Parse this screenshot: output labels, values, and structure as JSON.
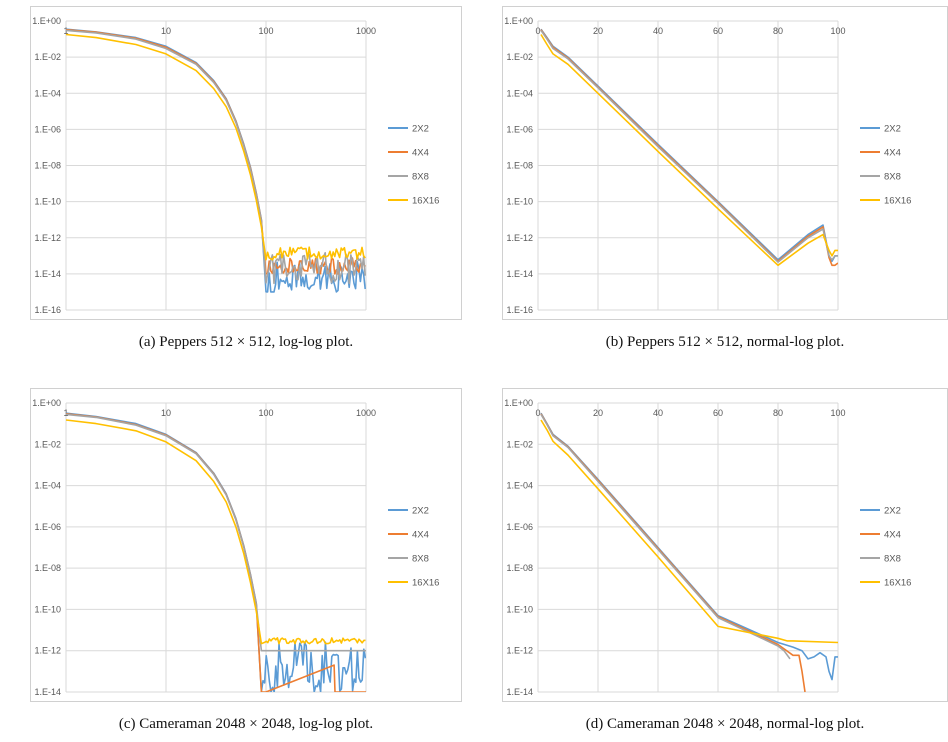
{
  "colors": {
    "2X2": "#5b9bd5",
    "4X4": "#ed7d31",
    "8X8": "#a5a5a5",
    "16X16": "#ffc000",
    "grid": "#d9d9d9"
  },
  "captions": {
    "a": "(a) Peppers 512 × 512, log-log plot.",
    "b": "(b) Peppers 512 × 512, normal-log plot.",
    "c": "(c) Cameraman 2048 × 2048, log-log plot.",
    "d": "(d) Cameraman 2048 × 2048, normal-log plot."
  },
  "legend": [
    "2X2",
    "4X4",
    "8X8",
    "16X16"
  ],
  "chart_data": [
    {
      "id": "a",
      "type": "line",
      "xscale": "log",
      "yscale": "log",
      "xlim": [
        1,
        1000
      ],
      "ylim": [
        1e-16,
        1
      ],
      "xticks": [
        "1",
        "10",
        "100",
        "1000"
      ],
      "yticks": [
        "1.E+00",
        "1.E-02",
        "1.E-04",
        "1.E-06",
        "1.E-08",
        "1.E-10",
        "1.E-12",
        "1.E-14",
        "1.E-16"
      ],
      "grid": true,
      "legend_position": "right",
      "series": [
        {
          "name": "2X2",
          "x": [
            1,
            2,
            5,
            10,
            20,
            30,
            40,
            50,
            60,
            70,
            80,
            90,
            100,
            200,
            400,
            1000
          ],
          "y": [
            0.35,
            0.25,
            0.12,
            0.04,
            0.005,
            0.0005,
            5e-05,
            3e-06,
            1.5e-07,
            8e-09,
            3e-10,
            1e-11,
            3e-13,
            2e-14,
            2e-14,
            2e-14
          ],
          "noise": {
            "x0": 100,
            "lo": 1e-15,
            "hi": 5e-14
          }
        },
        {
          "name": "4X4",
          "x": [
            1,
            2,
            5,
            10,
            20,
            30,
            40,
            50,
            60,
            70,
            80,
            90,
            100,
            200,
            400,
            1000
          ],
          "y": [
            0.33,
            0.24,
            0.11,
            0.035,
            0.0045,
            0.00045,
            4.5e-05,
            2.7e-06,
            1.3e-07,
            7e-09,
            2.7e-10,
            9e-12,
            3e-13,
            3e-14,
            3e-14,
            3e-14
          ],
          "noise": {
            "x0": 100,
            "lo": 1e-14,
            "hi": 8e-14
          }
        },
        {
          "name": "8X8",
          "x": [
            1,
            2,
            5,
            10,
            20,
            30,
            40,
            50,
            60,
            70,
            80,
            90,
            100,
            200,
            400,
            1000
          ],
          "y": [
            0.3,
            0.22,
            0.1,
            0.03,
            0.004,
            0.0004,
            4e-05,
            2.4e-06,
            1.2e-07,
            6e-09,
            2.4e-10,
            8e-12,
            3e-13,
            3e-14,
            3e-14,
            3e-14
          ],
          "noise": {
            "x0": 100,
            "lo": 3e-15,
            "hi": 1.5e-13
          }
        },
        {
          "name": "16X16",
          "x": [
            1,
            2,
            5,
            10,
            20,
            30,
            40,
            50,
            60,
            70,
            80,
            90,
            100,
            200,
            400,
            1000
          ],
          "y": [
            0.18,
            0.12,
            0.05,
            0.015,
            0.0018,
            0.00018,
            1.8e-05,
            1.2e-06,
            6e-08,
            3e-09,
            1.2e-10,
            4e-12,
            2e-13,
            2e-13,
            2e-13,
            2e-13
          ],
          "noise": {
            "x0": 100,
            "lo": 6e-14,
            "hi": 3e-13
          }
        }
      ]
    },
    {
      "id": "b",
      "type": "line",
      "xscale": "linear",
      "yscale": "log",
      "xlim": [
        0,
        100
      ],
      "ylim": [
        1e-16,
        1
      ],
      "xticks": [
        "0",
        "20",
        "40",
        "60",
        "80",
        "100"
      ],
      "yticks": [
        "1.E+00",
        "1.E-02",
        "1.E-04",
        "1.E-06",
        "1.E-08",
        "1.E-10",
        "1.E-12",
        "1.E-14",
        "1.E-16"
      ],
      "grid": true,
      "legend_position": "right",
      "series": [
        {
          "name": "2X2",
          "x": [
            1,
            3,
            5,
            10,
            20,
            40,
            60,
            80,
            90,
            95,
            97,
            98,
            99,
            100
          ],
          "y": [
            0.35,
            0.12,
            0.04,
            0.01,
            0.00025,
            1.5e-07,
            1e-10,
            6e-14,
            1.5e-12,
            5e-12,
            1e-13,
            5e-14,
            1e-13,
            1e-13
          ]
        },
        {
          "name": "4X4",
          "x": [
            1,
            3,
            5,
            10,
            20,
            40,
            60,
            80,
            90,
            95,
            97,
            98,
            99,
            100
          ],
          "y": [
            0.33,
            0.11,
            0.035,
            0.009,
            0.00022,
            1.3e-07,
            9e-11,
            5e-14,
            1.2e-12,
            4e-12,
            8e-14,
            3e-14,
            3e-14,
            4e-14
          ]
        },
        {
          "name": "8X8",
          "x": [
            1,
            3,
            5,
            10,
            20,
            40,
            60,
            80,
            90,
            95,
            97,
            98,
            99,
            100
          ],
          "y": [
            0.3,
            0.1,
            0.03,
            0.008,
            0.0002,
            1.1e-07,
            8e-11,
            4.5e-14,
            1e-12,
            3e-12,
            1e-13,
            6e-14,
            1e-13,
            1e-13
          ]
        },
        {
          "name": "16X16",
          "x": [
            1,
            3,
            5,
            10,
            20,
            40,
            60,
            80,
            90,
            95,
            97,
            98,
            99,
            100
          ],
          "y": [
            0.18,
            0.05,
            0.015,
            0.004,
            0.0001,
            6e-08,
            4e-11,
            3e-14,
            5e-13,
            1.5e-12,
            2e-13,
            1e-13,
            2e-13,
            2e-13
          ]
        }
      ]
    },
    {
      "id": "c",
      "type": "line",
      "xscale": "log",
      "yscale": "log",
      "xlim": [
        1,
        1000
      ],
      "ylim": [
        1e-14,
        1
      ],
      "xticks": [
        "1",
        "10",
        "100",
        "1000"
      ],
      "yticks": [
        "1.E+00",
        "1.E-02",
        "1.E-04",
        "1.E-06",
        "1.E-08",
        "1.E-10",
        "1.E-12",
        "1.E-14"
      ],
      "grid": true,
      "legend_position": "right",
      "series": [
        {
          "name": "2X2",
          "x": [
            1,
            2,
            5,
            10,
            20,
            30,
            40,
            50,
            60,
            70,
            80,
            90,
            1000
          ],
          "y": [
            0.32,
            0.22,
            0.1,
            0.03,
            0.004,
            0.0004,
            4e-05,
            2.5e-06,
            1.2e-07,
            5e-09,
            2e-10,
            1e-12,
            1e-12
          ],
          "noise": {
            "x0": 90,
            "lo": 1e-14,
            "hi": 3e-12
          }
        },
        {
          "name": "4X4",
          "x": [
            1,
            2,
            5,
            10,
            20,
            30,
            40,
            50,
            60,
            70,
            80,
            90,
            100,
            480,
            490,
            500,
            1000
          ],
          "y": [
            0.3,
            0.21,
            0.09,
            0.028,
            0.0037,
            0.00037,
            3.7e-05,
            2.3e-06,
            1.1e-07,
            4.5e-09,
            1.8e-10,
            1e-14,
            1e-14,
            2e-13,
            1e-14,
            1e-14,
            1e-14
          ]
        },
        {
          "name": "8X8",
          "x": [
            1,
            2,
            5,
            10,
            20,
            30,
            40,
            50,
            60,
            70,
            80,
            90,
            1000
          ],
          "y": [
            0.28,
            0.2,
            0.085,
            0.026,
            0.0035,
            0.00035,
            3.5e-05,
            2.2e-06,
            1.05e-07,
            4.2e-09,
            1.7e-10,
            1e-12,
            1e-12
          ]
        },
        {
          "name": "16X16",
          "x": [
            1,
            2,
            5,
            10,
            20,
            30,
            40,
            50,
            60,
            70,
            80,
            90,
            1000
          ],
          "y": [
            0.15,
            0.1,
            0.045,
            0.013,
            0.0016,
            0.00016,
            1.6e-05,
            1e-06,
            5e-08,
            2e-09,
            8e-11,
            3e-12,
            3e-12
          ],
          "noise": {
            "x0": 90,
            "lo": 2.2e-12,
            "hi": 4.2e-12
          }
        }
      ]
    },
    {
      "id": "d",
      "type": "line",
      "xscale": "linear",
      "yscale": "log",
      "xlim": [
        0,
        100
      ],
      "ylim": [
        1e-14,
        1
      ],
      "xticks": [
        "0",
        "20",
        "40",
        "60",
        "80",
        "100"
      ],
      "yticks": [
        "1.E+00",
        "1.E-02",
        "1.E-04",
        "1.E-06",
        "1.E-08",
        "1.E-10",
        "1.E-12",
        "1.E-14"
      ],
      "grid": true,
      "legend_position": "right",
      "series": [
        {
          "name": "2X2",
          "x": [
            1,
            3,
            5,
            10,
            20,
            40,
            60,
            80,
            85,
            88,
            90,
            92,
            94,
            96,
            97,
            98,
            99,
            100
          ],
          "y": [
            0.32,
            0.1,
            0.03,
            0.008,
            0.0002,
            1e-07,
            5e-11,
            2.5e-12,
            1.5e-12,
            1e-12,
            4e-13,
            5e-13,
            8e-13,
            5e-13,
            1e-13,
            4e-14,
            5e-13,
            5e-13
          ]
        },
        {
          "name": "4X4",
          "x": [
            1,
            3,
            5,
            10,
            20,
            40,
            60,
            80,
            85,
            87,
            88,
            89
          ],
          "y": [
            0.3,
            0.095,
            0.028,
            0.0075,
            0.00018,
            9e-08,
            4.5e-11,
            2e-12,
            6e-13,
            6e-13,
            1e-13,
            1e-14
          ]
        },
        {
          "name": "8X8",
          "x": [
            1,
            3,
            5,
            10,
            20,
            40,
            60,
            80,
            82,
            84
          ],
          "y": [
            0.28,
            0.09,
            0.026,
            0.007,
            0.00016,
            8e-08,
            4e-11,
            1.7e-12,
            1e-12,
            4e-13
          ]
        },
        {
          "name": "16X16",
          "x": [
            1,
            3,
            5,
            10,
            20,
            40,
            60,
            80,
            83,
            85,
            100
          ],
          "y": [
            0.15,
            0.05,
            0.014,
            0.003,
            7e-05,
            3.5e-08,
            1.5e-11,
            4e-12,
            3e-12,
            3e-12,
            2.5e-12
          ]
        }
      ]
    }
  ]
}
